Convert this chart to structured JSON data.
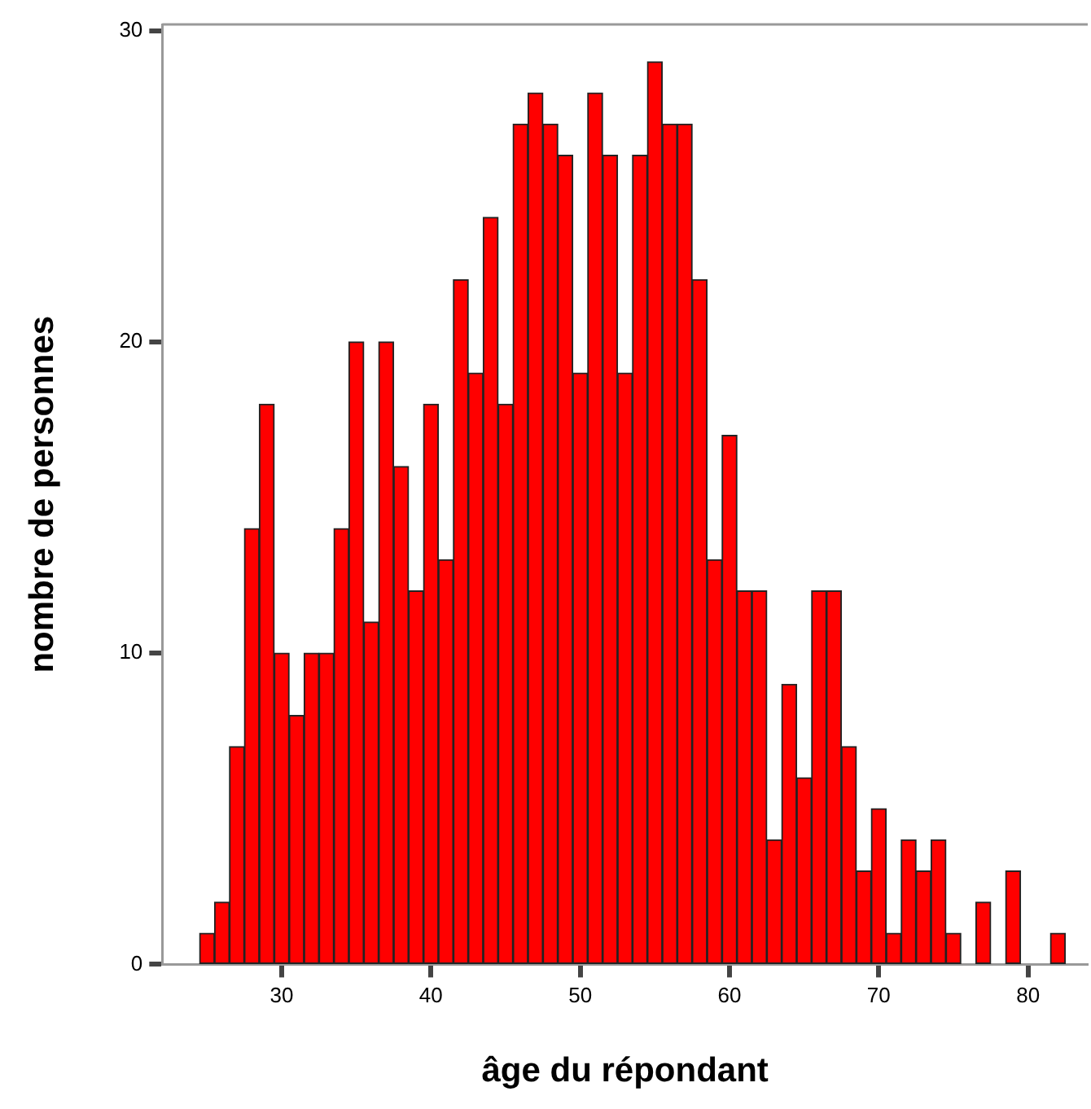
{
  "chart_data": {
    "type": "histogram",
    "xlabel": "âge du répondant",
    "ylabel": "nombre de personnes",
    "bins": [
      24.5,
      25.5,
      26.5,
      27.5,
      28.5,
      29.5,
      30.5,
      31.5,
      32.5,
      33.5,
      34.5,
      35.5,
      36.5,
      37.5,
      38.5,
      39.5,
      40.5,
      41.5,
      42.5,
      43.5,
      44.5,
      45.5,
      46.5,
      47.5,
      48.5,
      49.5,
      50.5,
      51.5,
      52.5,
      53.5,
      54.5,
      55.5,
      56.5,
      57.5,
      58.5,
      59.5,
      60.5,
      61.5,
      62.5,
      63.5,
      64.5,
      65.5,
      66.5,
      67.5,
      68.5,
      69.5,
      70.5,
      71.5,
      72.5,
      73.5,
      74.5,
      75.5,
      76.5,
      77.5,
      78.5,
      79.5,
      80.5,
      81.5,
      82.5
    ],
    "values": [
      1,
      2,
      7,
      14,
      18,
      10,
      8,
      10,
      10,
      14,
      20,
      11,
      20,
      16,
      12,
      18,
      13,
      22,
      19,
      24,
      18,
      27,
      28,
      27,
      26,
      19,
      28,
      26,
      19,
      26,
      29,
      27,
      27,
      22,
      13,
      17,
      12,
      12,
      4,
      9,
      6,
      12,
      12,
      7,
      3,
      5,
      1,
      4,
      3,
      4,
      1,
      0,
      2,
      0,
      3,
      0,
      0,
      1
    ],
    "color": "#ff0000",
    "xlim": [
      22,
      84
    ],
    "xticks": [
      30,
      40,
      50,
      60,
      70,
      80
    ],
    "ylim": [
      0,
      30.2
    ],
    "yticks": [
      0,
      10,
      20,
      30
    ],
    "grid": false,
    "legend": false
  }
}
